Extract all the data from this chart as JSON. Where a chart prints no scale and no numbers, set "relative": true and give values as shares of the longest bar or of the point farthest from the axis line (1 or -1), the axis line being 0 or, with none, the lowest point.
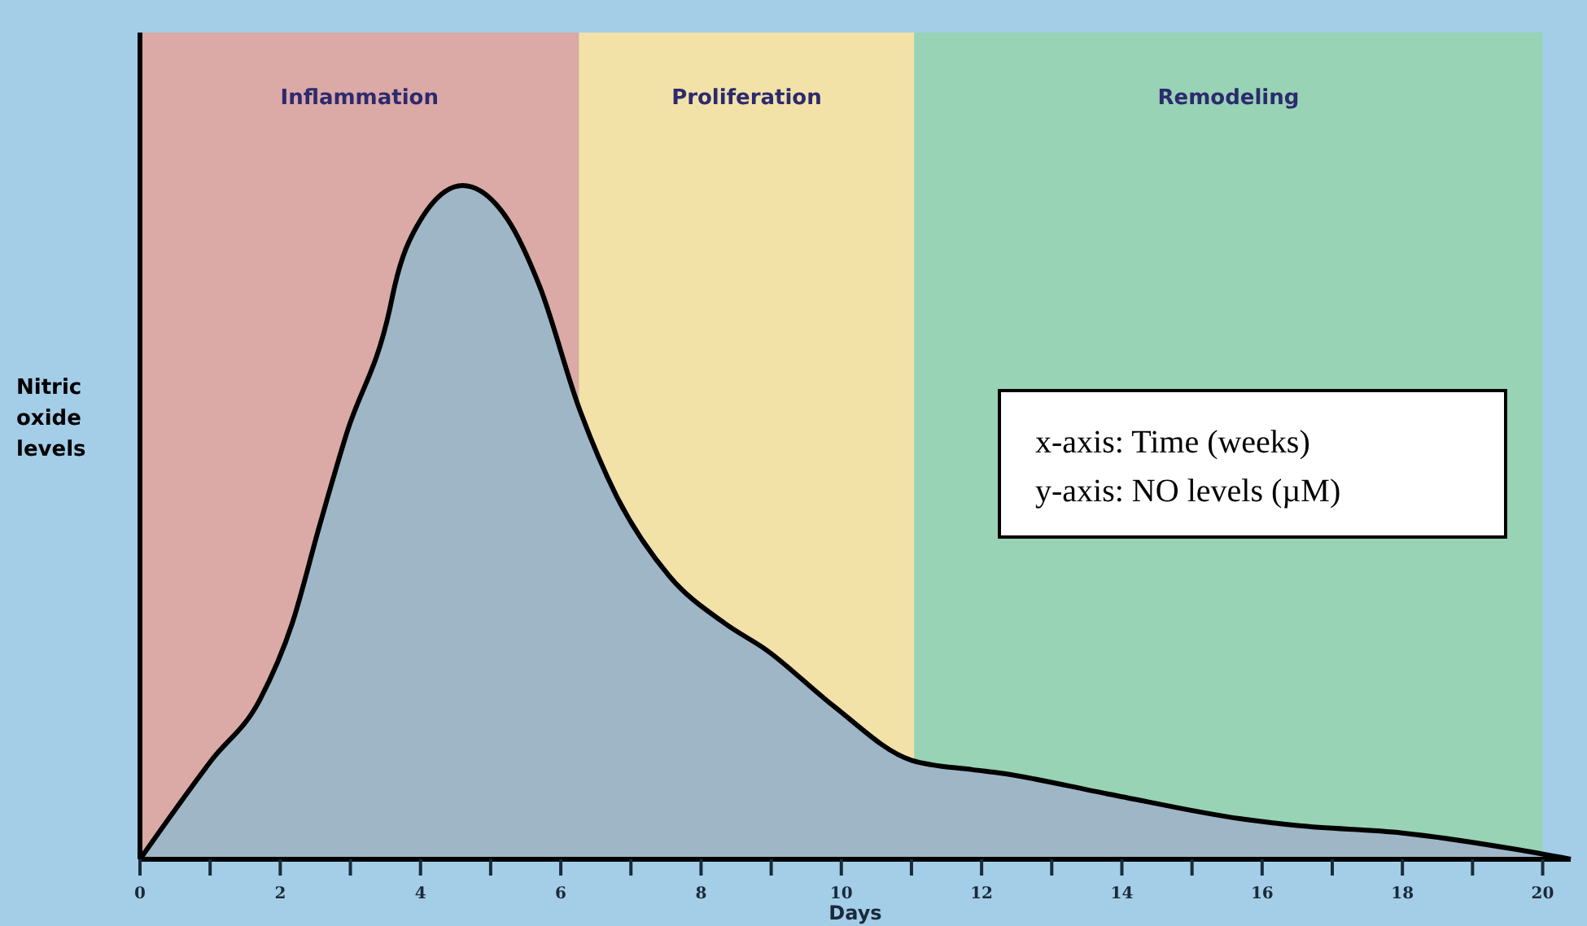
{
  "chart_data": {
    "type": "area",
    "relative": true,
    "xlabel": "Days",
    "ylabel": "Nitric oxide levels",
    "xlim": [
      0,
      20.4
    ],
    "xticks": [
      0,
      {
        "value": 1,
        "label": null
      },
      2,
      {
        "value": 3,
        "label": null
      },
      4,
      {
        "value": 5,
        "label": null
      },
      6,
      {
        "value": 7,
        "label": null
      },
      8,
      {
        "value": 9,
        "label": null
      },
      10,
      {
        "value": 11,
        "label": null
      },
      12,
      {
        "value": 13,
        "label": null
      },
      14,
      {
        "value": 15,
        "label": null
      },
      16,
      {
        "value": 17,
        "label": null
      },
      18,
      {
        "value": 19,
        "label": null
      },
      20
    ],
    "series": [
      {
        "color": "#9fb6c6",
        "x": [
          0,
          1.02,
          1.71,
          2.17,
          2.56,
          2.94,
          3.56,
          3.63,
          3.95,
          4.6,
          5.24,
          5.7,
          6.26,
          6.79,
          7.55,
          8.34,
          8.94,
          9.86,
          11.0,
          11.87,
          12.26,
          13.8,
          15.7,
          16.5,
          18.0,
          19.6,
          20.4
        ],
        "values": [
          0,
          0.147,
          0.237,
          0.35,
          0.495,
          0.63,
          0.816,
          0.85,
          0.94,
          1,
          0.95,
          0.85,
          0.67,
          0.54,
          0.42,
          0.35,
          0.31,
          0.23,
          0.147,
          0.133,
          0.128,
          0.097,
          0.06,
          0.05,
          0.039,
          0.015,
          0
        ]
      }
    ],
    "bands": [
      {
        "axis": "x",
        "from": 0,
        "to": 6.26,
        "label": "Inflammation",
        "color": "#dba9a6"
      },
      {
        "axis": "x",
        "from": 6.26,
        "to": 11.04,
        "label": "Proliferation",
        "color": "#f2e2a8"
      },
      {
        "axis": "x",
        "from": 11.04,
        "to": 20,
        "label": "Remodeling",
        "color": "#97d3b4"
      }
    ],
    "annotations": [
      "x-axis: Time (weeks)",
      "y-axis: NO levels (µM)"
    ]
  }
}
